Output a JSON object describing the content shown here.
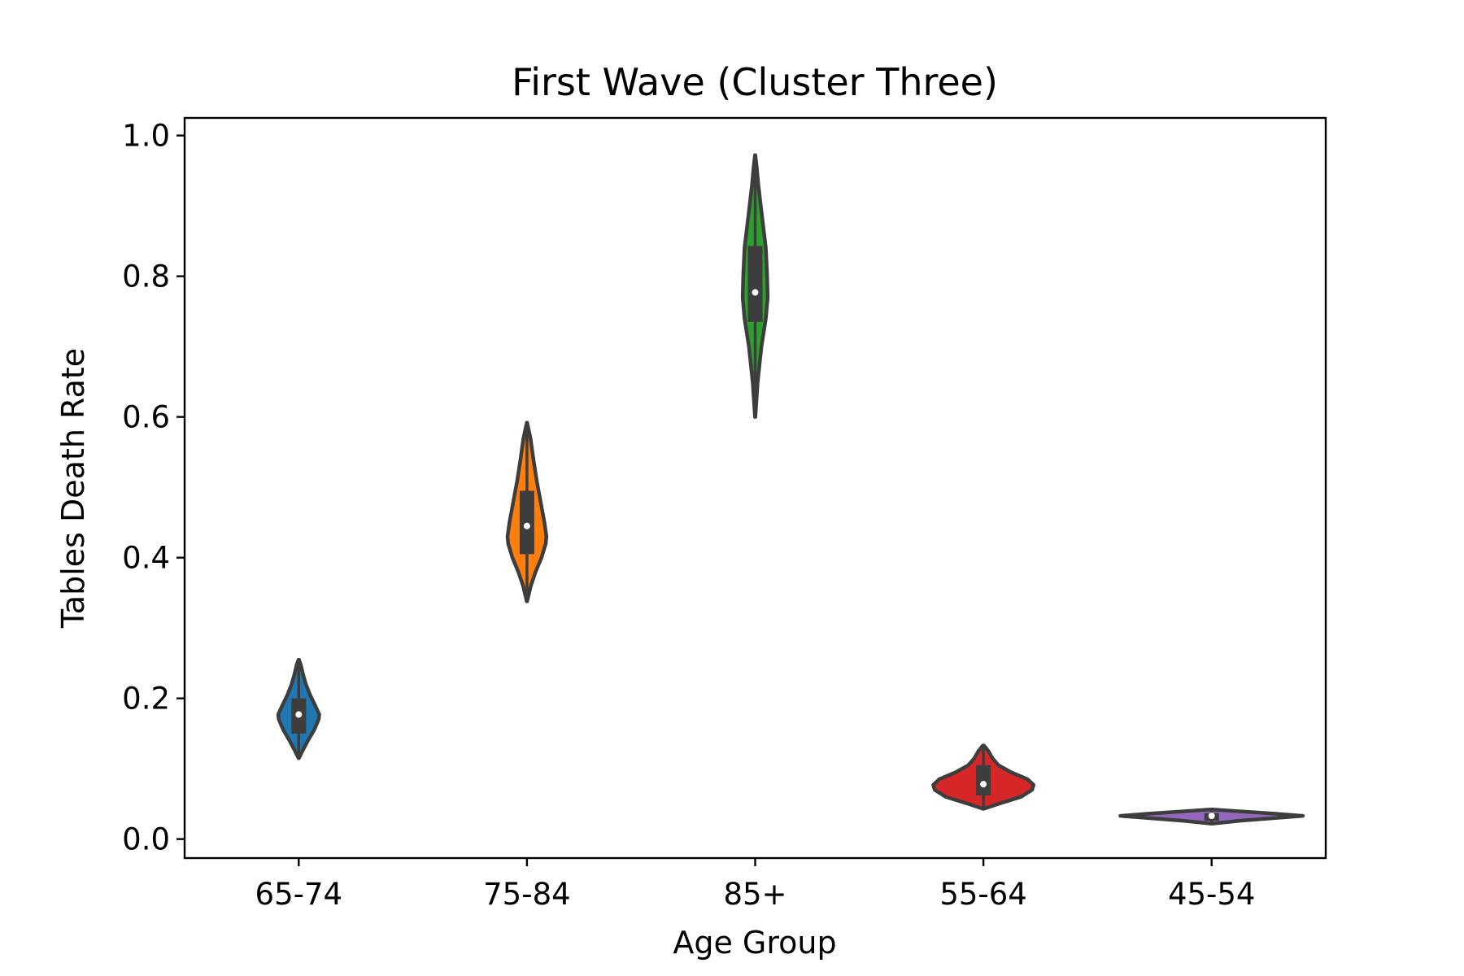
{
  "chart_data": {
    "type": "violin",
    "title": "First Wave (Cluster Three)",
    "xlabel": "Age Group",
    "ylabel": "Tables Death Rate",
    "categories": [
      "65-74",
      "75-84",
      "85+",
      "55-64",
      "45-54"
    ],
    "ylim": [
      -0.027,
      1.025
    ],
    "yticks": [
      "0.0",
      "0.2",
      "0.4",
      "0.6",
      "0.8",
      "1.0"
    ],
    "yticks_values": [
      0.0,
      0.2,
      0.4,
      0.6,
      0.8,
      1.0
    ],
    "grid": false,
    "legend": "none",
    "violins": [
      {
        "category": "65-74",
        "color": "#1f77b4",
        "min": 0.115,
        "max": 0.255,
        "q1": 0.15,
        "median": 0.177,
        "q3": 0.2,
        "max_half_width": 0.09,
        "profile": [
          [
            0.115,
            0.01
          ],
          [
            0.125,
            0.18
          ],
          [
            0.14,
            0.45
          ],
          [
            0.155,
            0.75
          ],
          [
            0.17,
            0.97
          ],
          [
            0.177,
            1.0
          ],
          [
            0.19,
            0.8
          ],
          [
            0.205,
            0.55
          ],
          [
            0.22,
            0.35
          ],
          [
            0.235,
            0.2
          ],
          [
            0.248,
            0.1
          ],
          [
            0.255,
            0.01
          ]
        ]
      },
      {
        "category": "75-84",
        "color": "#ff7f0e",
        "min": 0.338,
        "max": 0.592,
        "q1": 0.405,
        "median": 0.445,
        "q3": 0.495,
        "max_half_width": 0.085,
        "profile": [
          [
            0.338,
            0.01
          ],
          [
            0.36,
            0.2
          ],
          [
            0.38,
            0.45
          ],
          [
            0.4,
            0.75
          ],
          [
            0.42,
            0.97
          ],
          [
            0.43,
            1.0
          ],
          [
            0.45,
            0.9
          ],
          [
            0.48,
            0.7
          ],
          [
            0.51,
            0.5
          ],
          [
            0.54,
            0.33
          ],
          [
            0.57,
            0.18
          ],
          [
            0.592,
            0.01
          ]
        ]
      },
      {
        "category": "85+",
        "color": "#2ca02c",
        "min": 0.6,
        "max": 0.972,
        "q1": 0.735,
        "median": 0.777,
        "q3": 0.843,
        "max_half_width": 0.055,
        "profile": [
          [
            0.6,
            0.01
          ],
          [
            0.65,
            0.2
          ],
          [
            0.7,
            0.5
          ],
          [
            0.74,
            0.85
          ],
          [
            0.77,
            1.0
          ],
          [
            0.8,
            0.95
          ],
          [
            0.84,
            0.85
          ],
          [
            0.87,
            0.65
          ],
          [
            0.9,
            0.45
          ],
          [
            0.93,
            0.25
          ],
          [
            0.955,
            0.12
          ],
          [
            0.972,
            0.01
          ]
        ]
      },
      {
        "category": "55-64",
        "color": "#d62728",
        "min": 0.043,
        "max": 0.133,
        "q1": 0.062,
        "median": 0.078,
        "q3": 0.105,
        "max_half_width": 0.22,
        "profile": [
          [
            0.043,
            0.01
          ],
          [
            0.05,
            0.3
          ],
          [
            0.06,
            0.75
          ],
          [
            0.07,
            0.97
          ],
          [
            0.077,
            1.0
          ],
          [
            0.085,
            0.88
          ],
          [
            0.095,
            0.55
          ],
          [
            0.105,
            0.3
          ],
          [
            0.115,
            0.18
          ],
          [
            0.125,
            0.1
          ],
          [
            0.133,
            0.01
          ]
        ]
      },
      {
        "category": "45-54",
        "color": "#9467bd",
        "min": 0.022,
        "max": 0.042,
        "q1": 0.026,
        "median": 0.033,
        "q3": 0.037,
        "max_half_width": 0.4,
        "profile": [
          [
            0.022,
            0.01
          ],
          [
            0.026,
            0.3
          ],
          [
            0.03,
            0.7
          ],
          [
            0.033,
            1.0
          ],
          [
            0.036,
            0.7
          ],
          [
            0.039,
            0.35
          ],
          [
            0.042,
            0.01
          ]
        ]
      }
    ]
  }
}
